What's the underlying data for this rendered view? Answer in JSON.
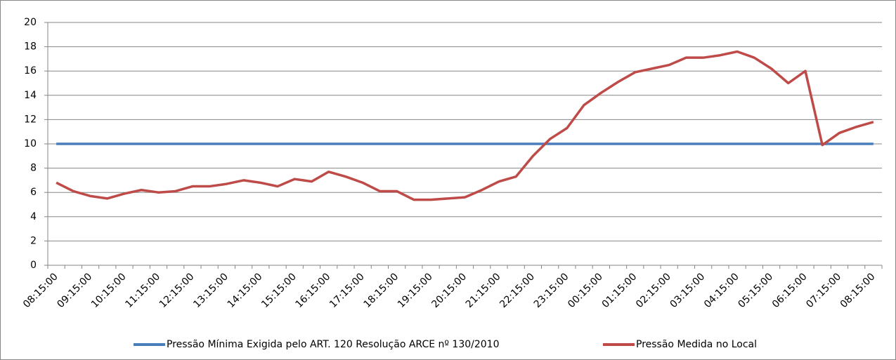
{
  "chart_data": {
    "type": "line",
    "categories": [
      "08:15:00",
      null,
      "09:15:00",
      null,
      "10:15:00",
      null,
      "11:15:00",
      null,
      "12:15:00",
      null,
      "13:15:00",
      null,
      "14:15:00",
      null,
      "15:15:00",
      null,
      "16:15:00",
      null,
      "17:15:00",
      null,
      "18:15:00",
      null,
      "19:15:00",
      null,
      "20:15:00",
      null,
      "21:15:00",
      null,
      "22:15:00",
      null,
      "23:15:00",
      null,
      "00:15:00",
      null,
      "01:15:00",
      null,
      "02:15:00",
      null,
      "03:15:00",
      null,
      "04:15:00",
      null,
      "05:15:00",
      null,
      "06:15:00",
      null,
      "07:15:00",
      null,
      "08:15:00"
    ],
    "series": [
      {
        "name": "Pressão Mínima Exigida pelo ART. 120 Resolução ARCE nº 130/2010",
        "color": "#4a7ebb",
        "values": [
          10,
          10,
          10,
          10,
          10,
          10,
          10,
          10,
          10,
          10,
          10,
          10,
          10,
          10,
          10,
          10,
          10,
          10,
          10,
          10,
          10,
          10,
          10,
          10,
          10,
          10,
          10,
          10,
          10,
          10,
          10,
          10,
          10,
          10,
          10,
          10,
          10,
          10,
          10,
          10,
          10,
          10,
          10,
          10,
          10,
          10,
          10,
          10,
          10
        ]
      },
      {
        "name": "Pressão Medida no Local",
        "color": "#be4b48",
        "values": [
          6.8,
          6.1,
          5.7,
          5.5,
          5.9,
          6.2,
          6.0,
          6.1,
          6.5,
          6.5,
          6.7,
          7.0,
          6.8,
          6.5,
          7.1,
          6.9,
          7.7,
          7.3,
          6.8,
          6.1,
          6.1,
          5.4,
          5.4,
          5.5,
          5.6,
          6.2,
          6.9,
          7.3,
          9.0,
          10.4,
          11.3,
          13.2,
          14.2,
          15.1,
          15.9,
          16.2,
          16.5,
          17.1,
          17.1,
          17.3,
          17.6,
          17.1,
          16.2,
          15.0,
          16.0,
          9.9,
          10.9,
          11.4,
          11.8
        ]
      }
    ],
    "ylim": [
      0,
      20
    ],
    "yticks": [
      0,
      2,
      4,
      6,
      8,
      10,
      12,
      14,
      16,
      18,
      20
    ],
    "grid": true,
    "legend": "bottom"
  }
}
